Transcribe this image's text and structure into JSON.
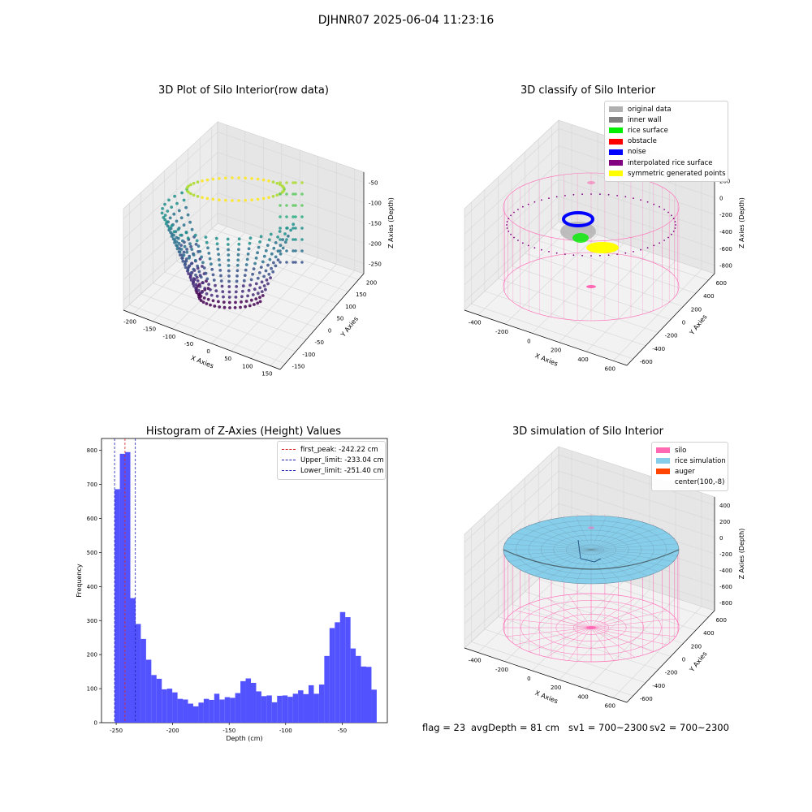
{
  "suptitle": "DJHNR07 2025-06-04 11:23:16",
  "colors": {
    "hist_bar": "#4b4bff",
    "peak": "#d62728",
    "limit": "#1f1fb4",
    "silo": "#ff69b4",
    "rice": "#87ceeb",
    "auger": "#ff4500",
    "noise": "#0000ff",
    "rice_surface": "#00ee00",
    "inner_wall": "#808080",
    "original": "#b0b0b0",
    "interp": "#800080",
    "symmetric": "#ffff00"
  },
  "panels": {
    "raw": {
      "title": "3D Plot of Silo Interior(row data)",
      "x_label": "X Axies",
      "y_label": "Y Axies",
      "z_label": "Z Axies (Depth)",
      "x_ticks": [
        "-200",
        "-150",
        "-100",
        "-50",
        "0",
        "50",
        "100",
        "150"
      ],
      "y_ticks": [
        "-150",
        "-100",
        "-50",
        "0",
        "50",
        "100",
        "150",
        "200"
      ],
      "z_ticks": [
        "-50",
        "-100",
        "-150",
        "-200",
        "-250"
      ]
    },
    "classify": {
      "title": "3D classify of Silo Interior",
      "x_label": "X Axies",
      "y_label": "Y Axies",
      "z_label": "Z Axies (Depth)",
      "x_ticks": [
        "-400",
        "-200",
        "0",
        "200",
        "400",
        "600"
      ],
      "y_ticks": [
        "-600",
        "-400",
        "-200",
        "0",
        "200",
        "400",
        "600"
      ],
      "z_ticks": [
        "200",
        "0",
        "-200",
        "-400",
        "-600",
        "-800"
      ],
      "z_ticks_partial": "00",
      "legend": [
        {
          "label": "original data",
          "color": "#b0b0b0"
        },
        {
          "label": "inner wall",
          "color": "#808080"
        },
        {
          "label": "rice surface",
          "color": "#00ee00"
        },
        {
          "label": "obstacle",
          "color": "#ff0000"
        },
        {
          "label": "noise",
          "color": "#0000ff"
        },
        {
          "label": "interpolated rice surface",
          "color": "#800080"
        },
        {
          "label": "symmetric generated points",
          "color": "#ffff00"
        }
      ]
    },
    "sim": {
      "title": "3D simulation of Silo Interior",
      "x_label": "X Axies",
      "y_label": "Y Axies",
      "z_label": "Z Axies (Depth)",
      "x_ticks": [
        "-400",
        "-200",
        "0",
        "200",
        "400",
        "600"
      ],
      "y_ticks": [
        "-600",
        "-400",
        "-200",
        "0",
        "200",
        "400",
        "600"
      ],
      "z_ticks": [
        "400",
        "200",
        "0",
        "-200",
        "-400",
        "-600",
        "-800"
      ],
      "legend": [
        {
          "label": "silo",
          "color": "#ff69b4"
        },
        {
          "label": "rice simulation",
          "color": "#87ceeb"
        },
        {
          "label": "auger",
          "color": "#ff4500"
        },
        {
          "label": "center(100,-8)",
          "color": ""
        }
      ]
    }
  },
  "chart_data": [
    {
      "type": "scatter",
      "title": "3D Plot of Silo Interior(row data)",
      "xlabel": "X Axies",
      "ylabel": "Y Axies",
      "zlabel": "Z Axies (Depth)",
      "xlim": [
        -220,
        160
      ],
      "ylim": [
        -160,
        210
      ],
      "zlim": [
        -270,
        -40
      ],
      "colormap": "viridis"
    },
    {
      "type": "scatter",
      "title": "3D classify of Silo Interior",
      "xlabel": "X Axies",
      "ylabel": "Y Axies",
      "zlabel": "Z Axies (Depth)",
      "xlim": [
        -500,
        700
      ],
      "ylim": [
        -650,
        650
      ],
      "zlim": [
        -900,
        350
      ]
    },
    {
      "type": "bar",
      "title": "Histogram of Z-Axies (Height) Values",
      "xlabel": "Depth (cm)",
      "ylabel": "Frequency",
      "xlim": [
        -263,
        -10
      ],
      "ylim": [
        0,
        835
      ],
      "x_ticks": [
        -250,
        -200,
        -150,
        -100,
        -50
      ],
      "y_ticks": [
        0,
        100,
        200,
        300,
        400,
        500,
        600,
        700,
        800
      ],
      "bin_start": -251.4,
      "bin_width": 4.64,
      "values": [
        686,
        790,
        795,
        366,
        290,
        246,
        185,
        140,
        129,
        98,
        100,
        89,
        70,
        68,
        56,
        48,
        59,
        70,
        67,
        85,
        68,
        75,
        73,
        87,
        122,
        130,
        117,
        92,
        78,
        80,
        60,
        79,
        80,
        76,
        85,
        95,
        84,
        110,
        85,
        112,
        196,
        278,
        295,
        325,
        310,
        218,
        196,
        165,
        164,
        97
      ],
      "vlines": [
        {
          "label": "first_peak: -242.22 cm",
          "x": -242.22,
          "color": "#d62728"
        },
        {
          "label": "Upper_limit: -233.04 cm",
          "x": -233.04,
          "color": "#1f1fb4"
        },
        {
          "label": "Lower_limit: -251.40 cm",
          "x": -251.4,
          "color": "#1f1fb4"
        }
      ]
    },
    {
      "type": "surface",
      "title": "3D simulation of Silo Interior",
      "xlabel": "X Axies",
      "ylabel": "Y Axies",
      "zlabel": "Z Axies (Depth)",
      "xlim": [
        -500,
        700
      ],
      "ylim": [
        -650,
        650
      ],
      "zlim": [
        -900,
        450
      ]
    }
  ],
  "footer": {
    "flag": "flag = 23",
    "avg_depth": "avgDepth = 81 cm",
    "sv1": "sv1 = 700~2300",
    "sv2": "sv2 = 700~2300"
  }
}
